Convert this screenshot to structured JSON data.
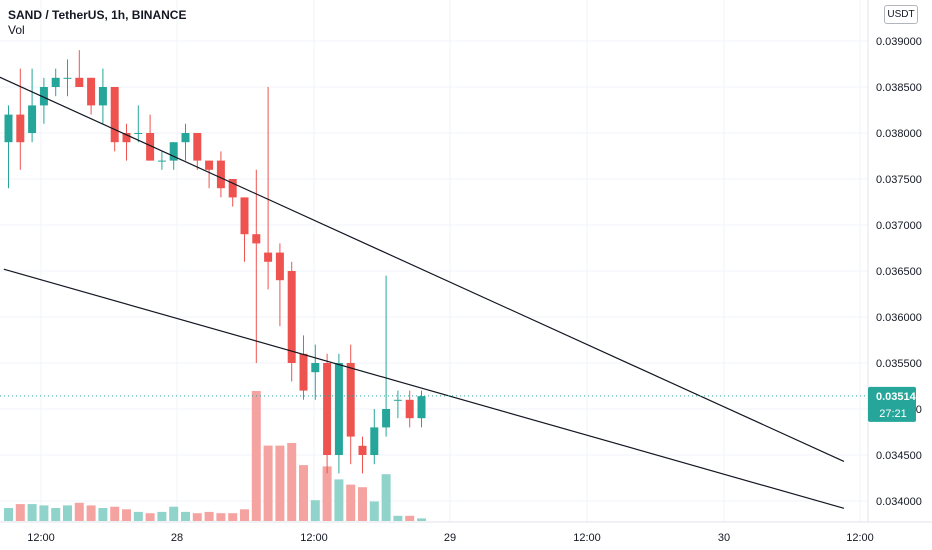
{
  "header": {
    "title": "SAND / TetherUS, 1h, BINANCE",
    "indicator": "Vol"
  },
  "currency": "USDT",
  "price_label": "0.035142",
  "countdown_label": "27:21",
  "colors": {
    "up": "#26a69a",
    "down": "#ef5350",
    "vol_up": "#8fd3cb",
    "vol_down": "#f5a3a1",
    "grid": "#f0f3fa",
    "last": "#26a69a"
  },
  "chart_data": {
    "type": "candlestick",
    "interval": "1h",
    "y_axis": {
      "ticks": [
        0.034,
        0.0345,
        0.035,
        0.0355,
        0.036,
        0.0365,
        0.037,
        0.0375,
        0.038,
        0.0385,
        0.039
      ],
      "tick_labels": [
        "0.034000",
        "0.034500",
        "0.035000",
        "0.035500",
        "0.036000",
        "0.036500",
        "0.037000",
        "0.037500",
        "0.038000",
        "0.038500",
        "0.039000"
      ]
    },
    "x_axis": {
      "tick_labels": [
        "12:00",
        "28",
        "12:00",
        "29",
        "12:00",
        "30",
        "12:00"
      ]
    },
    "candles": [
      {
        "o": 0.0379,
        "h": 0.0383,
        "l": 0.0374,
        "c": 0.0382,
        "v": 0.1
      },
      {
        "o": 0.0382,
        "h": 0.0387,
        "l": 0.0376,
        "c": 0.0379,
        "v": 0.13
      },
      {
        "o": 0.038,
        "h": 0.0387,
        "l": 0.0379,
        "c": 0.0383,
        "v": 0.13
      },
      {
        "o": 0.0383,
        "h": 0.0386,
        "l": 0.0381,
        "c": 0.0385,
        "v": 0.12
      },
      {
        "o": 0.0385,
        "h": 0.0387,
        "l": 0.0384,
        "c": 0.0386,
        "v": 0.1
      },
      {
        "o": 0.0386,
        "h": 0.0388,
        "l": 0.0384,
        "c": 0.0386,
        "v": 0.12
      },
      {
        "o": 0.0386,
        "h": 0.0389,
        "l": 0.0385,
        "c": 0.0385,
        "v": 0.14
      },
      {
        "o": 0.0386,
        "h": 0.0386,
        "l": 0.0382,
        "c": 0.0383,
        "v": 0.12
      },
      {
        "o": 0.0383,
        "h": 0.0387,
        "l": 0.0381,
        "c": 0.0385,
        "v": 0.1
      },
      {
        "o": 0.0385,
        "h": 0.0385,
        "l": 0.0378,
        "c": 0.0379,
        "v": 0.11
      },
      {
        "o": 0.038,
        "h": 0.0381,
        "l": 0.0377,
        "c": 0.0379,
        "v": 0.09
      },
      {
        "o": 0.038,
        "h": 0.0383,
        "l": 0.0379,
        "c": 0.038,
        "v": 0.07
      },
      {
        "o": 0.038,
        "h": 0.0382,
        "l": 0.0377,
        "c": 0.0377,
        "v": 0.06
      },
      {
        "o": 0.0377,
        "h": 0.0378,
        "l": 0.0376,
        "c": 0.0377,
        "v": 0.07
      },
      {
        "o": 0.0377,
        "h": 0.0379,
        "l": 0.0376,
        "c": 0.0379,
        "v": 0.11
      },
      {
        "o": 0.0379,
        "h": 0.0381,
        "l": 0.0377,
        "c": 0.038,
        "v": 0.07
      },
      {
        "o": 0.038,
        "h": 0.038,
        "l": 0.0376,
        "c": 0.0377,
        "v": 0.06
      },
      {
        "o": 0.0377,
        "h": 0.0377,
        "l": 0.0374,
        "c": 0.0376,
        "v": 0.07
      },
      {
        "o": 0.0377,
        "h": 0.0378,
        "l": 0.0373,
        "c": 0.0374,
        "v": 0.06
      },
      {
        "o": 0.0375,
        "h": 0.0375,
        "l": 0.0372,
        "c": 0.0373,
        "v": 0.06
      },
      {
        "o": 0.0373,
        "h": 0.0373,
        "l": 0.0366,
        "c": 0.0369,
        "v": 0.09
      },
      {
        "o": 0.0369,
        "h": 0.0376,
        "l": 0.0355,
        "c": 0.0368,
        "v": 1.0
      },
      {
        "o": 0.0367,
        "h": 0.0385,
        "l": 0.0363,
        "c": 0.0366,
        "v": 0.58
      },
      {
        "o": 0.0367,
        "h": 0.0368,
        "l": 0.0359,
        "c": 0.0364,
        "v": 0.58
      },
      {
        "o": 0.0365,
        "h": 0.0366,
        "l": 0.0353,
        "c": 0.0355,
        "v": 0.6
      },
      {
        "o": 0.0356,
        "h": 0.0358,
        "l": 0.0351,
        "c": 0.0352,
        "v": 0.43
      },
      {
        "o": 0.0354,
        "h": 0.0357,
        "l": 0.0351,
        "c": 0.0355,
        "v": 0.16
      },
      {
        "o": 0.0355,
        "h": 0.0356,
        "l": 0.0343,
        "c": 0.0345,
        "v": 0.42
      },
      {
        "o": 0.0345,
        "h": 0.0356,
        "l": 0.0343,
        "c": 0.0355,
        "v": 0.32
      },
      {
        "o": 0.0355,
        "h": 0.0357,
        "l": 0.0344,
        "c": 0.0347,
        "v": 0.28
      },
      {
        "o": 0.0346,
        "h": 0.0347,
        "l": 0.0343,
        "c": 0.0345,
        "v": 0.26
      },
      {
        "o": 0.0345,
        "h": 0.035,
        "l": 0.0344,
        "c": 0.0348,
        "v": 0.15
      },
      {
        "o": 0.0348,
        "h": 0.03645,
        "l": 0.0347,
        "c": 0.035,
        "v": 0.36
      },
      {
        "o": 0.0351,
        "h": 0.0352,
        "l": 0.0349,
        "c": 0.0351,
        "v": 0.04
      },
      {
        "o": 0.0351,
        "h": 0.0352,
        "l": 0.0348,
        "c": 0.0349,
        "v": 0.04
      },
      {
        "o": 0.0349,
        "h": 0.0352,
        "l": 0.0348,
        "c": 0.03514,
        "v": 0.02
      }
    ],
    "trendlines": [
      {
        "from": {
          "bar": -10.9,
          "price": 0.0392
        },
        "to": {
          "bar": 70.8,
          "price": 0.03443
        }
      },
      {
        "from": {
          "bar": -0.4,
          "price": 0.03652
        },
        "to": {
          "bar": 70.8,
          "price": 0.03392
        }
      }
    ],
    "last_price": 0.035142
  }
}
